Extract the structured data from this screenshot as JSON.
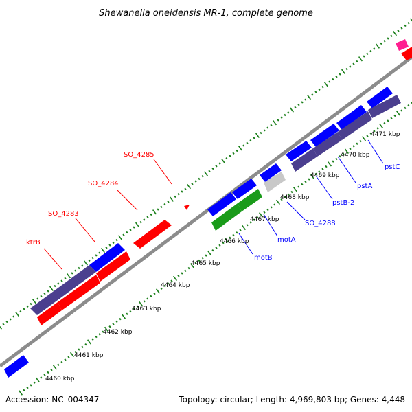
{
  "header": {
    "title": "Shewanella oneidensis MR-1, complete genome"
  },
  "footer": {
    "accession": "Accession: NC_004347",
    "summary": "Topology: circular; Length: 4,969,803 bp; Genes: 4,448"
  },
  "colors": {
    "backbone": "#8c8c8c",
    "tick": "#1a7f1a",
    "red": "#ff0000",
    "blue": "#0000ff",
    "slate": "#4b3f8f",
    "green": "#1a9b1a",
    "grey": "#c8c8c8",
    "pink": "#ff2090"
  },
  "chart_data": {
    "type": "linear-genome-map",
    "axis_unit": "kbp",
    "axis_labels": [
      "4460 kbp",
      "4461 kbp",
      "4462 kbp",
      "4463 kbp",
      "4464 kbp",
      "4465 kbp",
      "4466 kbp",
      "4467 kbp",
      "4468 kbp",
      "4469 kbp",
      "4470 kbp",
      "4471 kbp"
    ],
    "gene_labels": [
      {
        "text": "ktrB",
        "color": "red"
      },
      {
        "text": "SO_4283",
        "color": "red"
      },
      {
        "text": "SO_4284",
        "color": "red"
      },
      {
        "text": "SO_4285",
        "color": "red"
      },
      {
        "text": "motB",
        "color": "blue"
      },
      {
        "text": "motA",
        "color": "blue"
      },
      {
        "text": "SO_4288",
        "color": "blue"
      },
      {
        "text": "pstB-2",
        "color": "blue"
      },
      {
        "text": "pstA",
        "color": "blue"
      },
      {
        "text": "pstC",
        "color": "blue"
      }
    ]
  }
}
